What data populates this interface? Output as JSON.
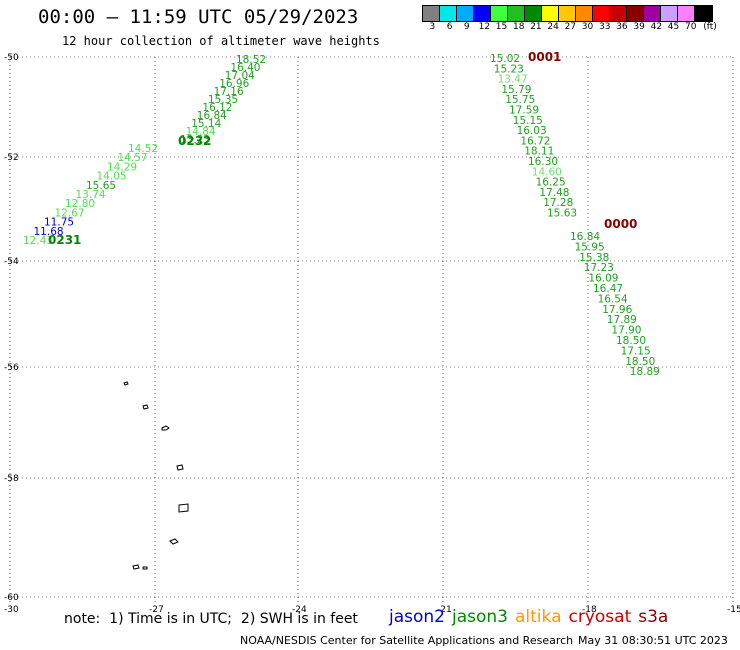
{
  "header": {
    "title": "00:00 – 11:59 UTC 05/29/2023",
    "subtitle": "12 hour collection of altimeter wave heights"
  },
  "legend": {
    "colors": [
      "#808080",
      "#00e8e8",
      "#00aaff",
      "#0000ff",
      "#40ff40",
      "#20c020",
      "#008800",
      "#ffff00",
      "#ffc800",
      "#ff8800",
      "#ff0000",
      "#c80000",
      "#880000",
      "#a000a0",
      "#c8a0ff",
      "#ff80ff",
      "#000000"
    ],
    "labels": [
      "3",
      "6",
      "9",
      "12",
      "15",
      "18",
      "21",
      "24",
      "27",
      "30",
      "33",
      "36",
      "39",
      "42",
      "45",
      "70",
      "(ft)"
    ]
  },
  "axes": {
    "lat_labels": [
      "-50",
      "-52",
      "-54",
      "-56",
      "-58",
      "-60"
    ],
    "lon_labels": [
      "-30",
      "-27",
      "-24",
      "-21",
      "-18",
      "-15"
    ]
  },
  "tracks": [
    {
      "time_label": "0232",
      "time_color": "#008800",
      "points": [
        {
          "v": "18.52",
          "c": "#20a020"
        },
        {
          "v": "16.40",
          "c": "#20a020"
        },
        {
          "v": "17.04",
          "c": "#20a020"
        },
        {
          "v": "16.96",
          "c": "#20a020"
        },
        {
          "v": "17.16",
          "c": "#20a020"
        },
        {
          "v": "15.35",
          "c": "#20a020"
        },
        {
          "v": "16.12",
          "c": "#20a020"
        },
        {
          "v": "16.84",
          "c": "#20a020"
        },
        {
          "v": "15.14",
          "c": "#20a020"
        },
        {
          "v": "14.84",
          "c": "#50e050"
        },
        {
          "v": "13.23",
          "c": "#20a020"
        }
      ]
    },
    {
      "time_label": "0231",
      "time_color": "#008800",
      "points": [
        {
          "v": "14.52",
          "c": "#50e050"
        },
        {
          "v": "14.57",
          "c": "#50e050"
        },
        {
          "v": "14.29",
          "c": "#50e050"
        },
        {
          "v": "14.05",
          "c": "#50e050"
        },
        {
          "v": "15.65",
          "c": "#20a020"
        },
        {
          "v": "13.74",
          "c": "#50e050"
        },
        {
          "v": "12.80",
          "c": "#50e050"
        },
        {
          "v": "12.67",
          "c": "#50e050"
        },
        {
          "v": "11.75",
          "c": "#0000cc"
        },
        {
          "v": "11.68",
          "c": "#0000cc"
        },
        {
          "v": "12.43",
          "c": "#50e050"
        }
      ]
    },
    {
      "time_label": "0001",
      "time_color": "#880000",
      "points": [
        {
          "v": "15.02",
          "c": "#20a020"
        },
        {
          "v": "15.23",
          "c": "#20a020"
        },
        {
          "v": "13.47",
          "c": "#70e070"
        },
        {
          "v": "15.79",
          "c": "#20a020"
        },
        {
          "v": "15.75",
          "c": "#20a020"
        },
        {
          "v": "17.59",
          "c": "#20a020"
        },
        {
          "v": "15.15",
          "c": "#20a020"
        },
        {
          "v": "16.03",
          "c": "#20a020"
        },
        {
          "v": "16.72",
          "c": "#20a020"
        },
        {
          "v": "18.11",
          "c": "#20a020"
        },
        {
          "v": "16.30",
          "c": "#20a020"
        },
        {
          "v": "14.60",
          "c": "#70e070"
        },
        {
          "v": "16.25",
          "c": "#20a020"
        },
        {
          "v": "17.48",
          "c": "#20a020"
        },
        {
          "v": "17.28",
          "c": "#20a020"
        },
        {
          "v": "15.63",
          "c": "#20a020"
        }
      ]
    },
    {
      "time_label": "0000",
      "time_color": "#880000",
      "points": [
        {
          "v": "16.84",
          "c": "#20a020"
        },
        {
          "v": "15.95",
          "c": "#20a020"
        },
        {
          "v": "15.38",
          "c": "#20a020"
        },
        {
          "v": "17.23",
          "c": "#20a020"
        },
        {
          "v": "16.09",
          "c": "#20a020"
        },
        {
          "v": "16.47",
          "c": "#20a020"
        },
        {
          "v": "16.54",
          "c": "#20a020"
        },
        {
          "v": "17.96",
          "c": "#20a020"
        },
        {
          "v": "17.89",
          "c": "#20a020"
        },
        {
          "v": "17.90",
          "c": "#20a020"
        },
        {
          "v": "18.50",
          "c": "#20a020"
        },
        {
          "v": "17.15",
          "c": "#20a020"
        },
        {
          "v": "18.50",
          "c": "#20a020"
        },
        {
          "v": "18.89",
          "c": "#20a020"
        }
      ]
    }
  ],
  "note": "note:  1) Time is in UTC;  2) SWH is in feet",
  "satellites": [
    {
      "name": "jason2",
      "color": "#0000cc"
    },
    {
      "name": "jason3",
      "color": "#008800"
    },
    {
      "name": "altika",
      "color": "#ff9900"
    },
    {
      "name": "cryosat",
      "color": "#cc0000"
    },
    {
      "name": "s3a",
      "color": "#880000"
    }
  ],
  "footer": {
    "source": "NOAA/NESDIS Center for Satellite Applications and Research",
    "timestamp": "May 31 08:30:51 UTC 2023"
  }
}
